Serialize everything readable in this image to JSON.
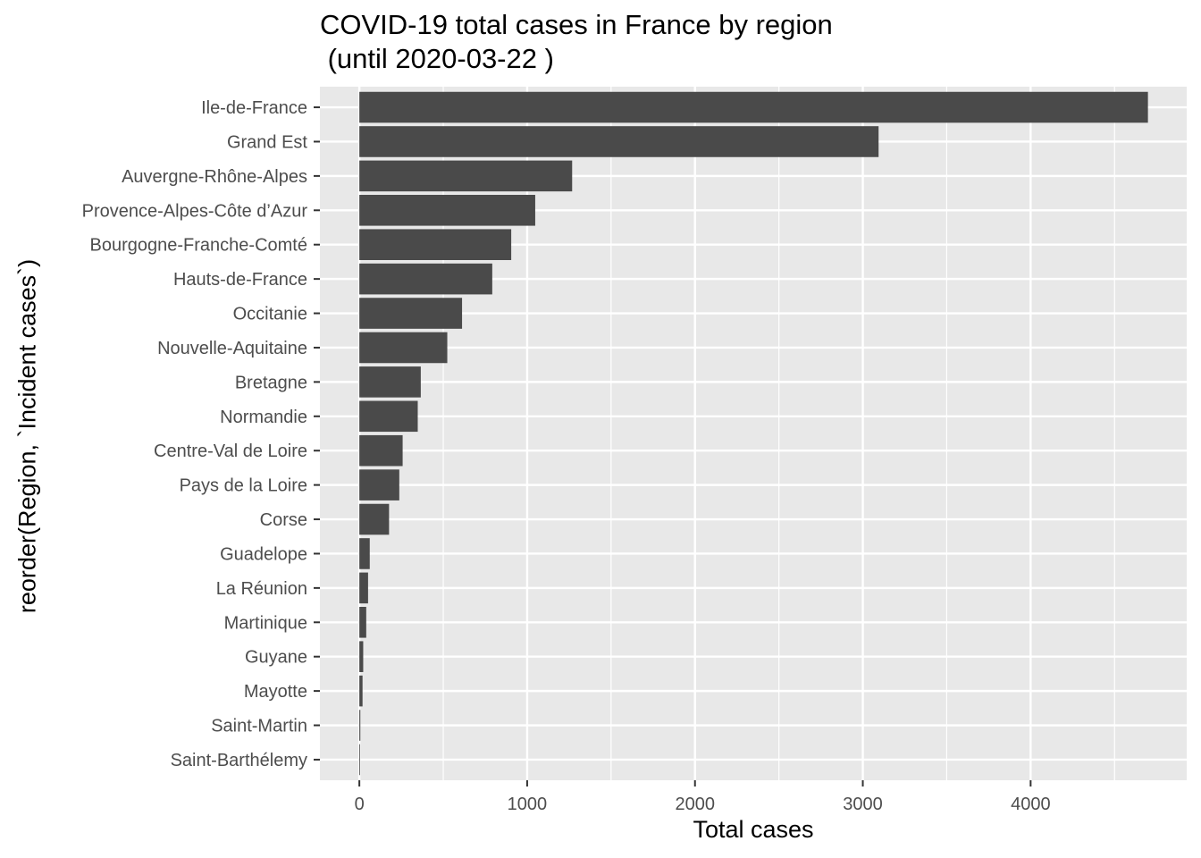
{
  "chart_data": {
    "type": "bar",
    "orientation": "horizontal",
    "title_lines": [
      "COVID-19 total cases in France by region",
      " (until 2020-03-22 )"
    ],
    "xlabel": "Total cases",
    "ylabel": "reorder(Region, `Incident cases`)",
    "xlim": [
      -235,
      4930
    ],
    "x_ticks": [
      0,
      1000,
      2000,
      3000,
      4000
    ],
    "grid": true,
    "bar_color": "#4a4a4a",
    "panel_color": "#e8e8e8",
    "categories": [
      "Ile-de-France",
      "Grand Est",
      "Auvergne-Rhône-Alpes",
      "Provence-Alpes-Côte d’Azur",
      "Bourgogne-Franche-Comté",
      "Hauts-de-France",
      "Occitanie",
      "Nouvelle-Aquitaine",
      "Bretagne",
      "Normandie",
      "Centre-Val de Loire",
      "Pays de la Loire",
      "Corse",
      "Guadelope",
      "La Réunion",
      "Martinique",
      "Guyane",
      "Mayotte",
      "Saint-Martin",
      "Saint-Barthélemy"
    ],
    "values": [
      4699,
      3094,
      1268,
      1048,
      905,
      792,
      612,
      524,
      366,
      348,
      258,
      238,
      177,
      62,
      52,
      41,
      23,
      19,
      6,
      3
    ]
  }
}
